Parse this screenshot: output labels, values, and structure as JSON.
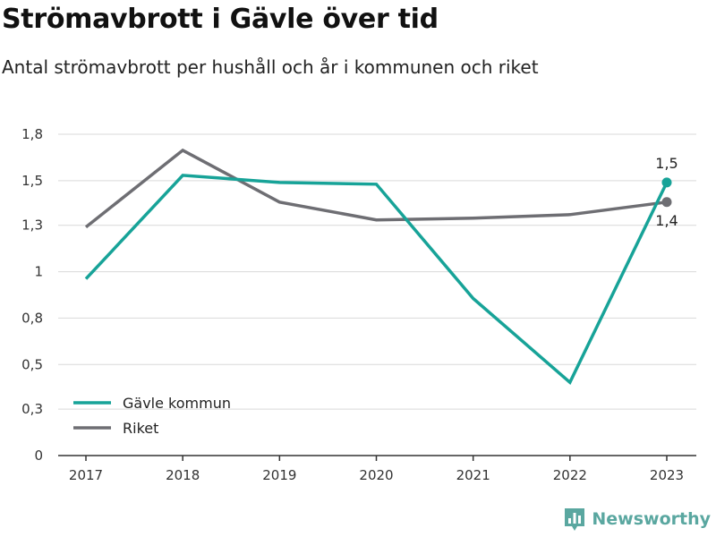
{
  "header": {
    "title": "Strömavbrott i Gävle över tid",
    "subtitle": "Antal strömavbrott per hushåll och år i kommunen och riket"
  },
  "brand": {
    "name": "Newsworthy",
    "icon": "bar-chart-logo-icon",
    "color": "#5aa7a0"
  },
  "chart_data": {
    "type": "line",
    "x": [
      "2017",
      "2018",
      "2019",
      "2020",
      "2021",
      "2022",
      "2023"
    ],
    "ylim": [
      0,
      1.8
    ],
    "yticks": [
      0,
      0.26,
      0.51,
      0.77,
      1.03,
      1.29,
      1.54,
      1.8
    ],
    "ytick_labels": [
      "0",
      "0,3",
      "0,5",
      "0,8",
      "1",
      "1,3",
      "1,5",
      "1,8"
    ],
    "grid": true,
    "legend_position": "bottom-left",
    "series": [
      {
        "name": "Gävle kommun",
        "color": "#17a398",
        "values": [
          0.99,
          1.57,
          1.53,
          1.52,
          0.88,
          0.41,
          1.53
        ],
        "end_label": "1,5"
      },
      {
        "name": "Riket",
        "color": "#6e6e73",
        "values": [
          1.28,
          1.71,
          1.42,
          1.32,
          1.33,
          1.35,
          1.42
        ],
        "end_label": "1,4"
      }
    ]
  }
}
